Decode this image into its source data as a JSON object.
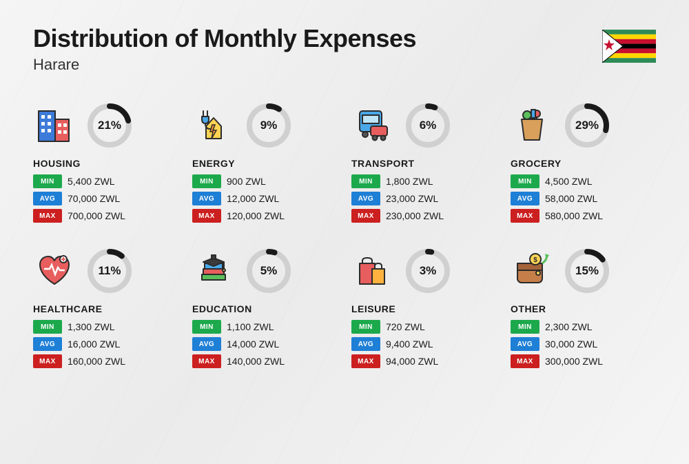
{
  "title": "Distribution of Monthly Expenses",
  "subtitle": "Harare",
  "colors": {
    "min": "#1ca94c",
    "avg": "#1e7fd6",
    "max": "#cc1f1f",
    "ring_fill": "#1a1a1a",
    "ring_track": "#d0d0d0",
    "text": "#1a1a1a"
  },
  "labels": {
    "min": "MIN",
    "avg": "AVG",
    "max": "MAX"
  },
  "ring": {
    "size": 70,
    "stroke_width": 8,
    "radius": 28
  },
  "flag": {
    "stripes": [
      "#2e8b57",
      "#ffd700",
      "#c8102e",
      "#000000",
      "#c8102e",
      "#ffd700",
      "#2e8b57"
    ],
    "triangle": "#ffffff",
    "star": "#c8102e",
    "bird": "#ffd700"
  },
  "categories": [
    {
      "name": "HOUSING",
      "percent": 21,
      "percent_label": "21%",
      "min": "5,400 ZWL",
      "avg": "70,000 ZWL",
      "max": "700,000 ZWL",
      "icon": "housing"
    },
    {
      "name": "ENERGY",
      "percent": 9,
      "percent_label": "9%",
      "min": "900 ZWL",
      "avg": "12,000 ZWL",
      "max": "120,000 ZWL",
      "icon": "energy"
    },
    {
      "name": "TRANSPORT",
      "percent": 6,
      "percent_label": "6%",
      "min": "1,800 ZWL",
      "avg": "23,000 ZWL",
      "max": "230,000 ZWL",
      "icon": "transport"
    },
    {
      "name": "GROCERY",
      "percent": 29,
      "percent_label": "29%",
      "min": "4,500 ZWL",
      "avg": "58,000 ZWL",
      "max": "580,000 ZWL",
      "icon": "grocery"
    },
    {
      "name": "HEALTHCARE",
      "percent": 11,
      "percent_label": "11%",
      "min": "1,300 ZWL",
      "avg": "16,000 ZWL",
      "max": "160,000 ZWL",
      "icon": "healthcare"
    },
    {
      "name": "EDUCATION",
      "percent": 5,
      "percent_label": "5%",
      "min": "1,100 ZWL",
      "avg": "14,000 ZWL",
      "max": "140,000 ZWL",
      "icon": "education"
    },
    {
      "name": "LEISURE",
      "percent": 3,
      "percent_label": "3%",
      "min": "720 ZWL",
      "avg": "9,400 ZWL",
      "max": "94,000 ZWL",
      "icon": "leisure"
    },
    {
      "name": "OTHER",
      "percent": 15,
      "percent_label": "15%",
      "min": "2,300 ZWL",
      "avg": "30,000 ZWL",
      "max": "300,000 ZWL",
      "icon": "other"
    }
  ]
}
